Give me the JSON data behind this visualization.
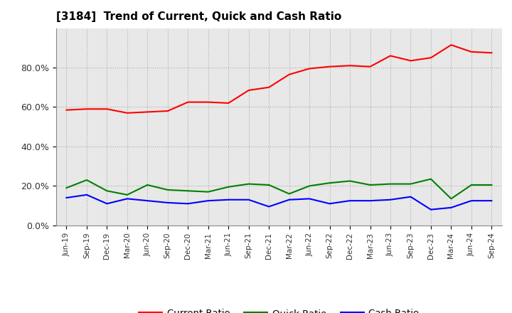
{
  "title": "[3184]  Trend of Current, Quick and Cash Ratio",
  "labels": [
    "Jun-19",
    "Sep-19",
    "Dec-19",
    "Mar-20",
    "Jun-20",
    "Sep-20",
    "Dec-20",
    "Mar-21",
    "Jun-21",
    "Sep-21",
    "Dec-21",
    "Mar-22",
    "Jun-22",
    "Sep-22",
    "Dec-22",
    "Mar-23",
    "Jun-23",
    "Sep-23",
    "Dec-23",
    "Mar-24",
    "Jun-24",
    "Sep-24"
  ],
  "current_ratio": [
    58.5,
    59.0,
    59.0,
    57.0,
    57.5,
    58.0,
    62.5,
    62.5,
    62.0,
    68.5,
    70.0,
    76.5,
    79.5,
    80.5,
    81.0,
    80.5,
    86.0,
    83.5,
    85.0,
    91.5,
    88.0,
    87.5
  ],
  "quick_ratio": [
    19.0,
    23.0,
    17.5,
    15.5,
    20.5,
    18.0,
    17.5,
    17.0,
    19.5,
    21.0,
    20.5,
    16.0,
    20.0,
    21.5,
    22.5,
    20.5,
    21.0,
    21.0,
    23.5,
    13.5,
    20.5,
    20.5
  ],
  "cash_ratio": [
    14.0,
    15.5,
    11.0,
    13.5,
    12.5,
    11.5,
    11.0,
    12.5,
    13.0,
    13.0,
    9.5,
    13.0,
    13.5,
    11.0,
    12.5,
    12.5,
    13.0,
    14.5,
    8.0,
    9.0,
    12.5,
    12.5
  ],
  "current_color": "#FF0000",
  "quick_color": "#008000",
  "cash_color": "#0000FF",
  "ylim": [
    0,
    100
  ],
  "yticks": [
    0,
    20,
    40,
    60,
    80
  ],
  "ytick_labels": [
    "0.0%",
    "20.0%",
    "40.0%",
    "60.0%",
    "80.0%"
  ],
  "background_color": "#FFFFFF",
  "plot_bg_color": "#E8E8E8",
  "grid_color": "#AAAAAA",
  "line_width": 1.5
}
